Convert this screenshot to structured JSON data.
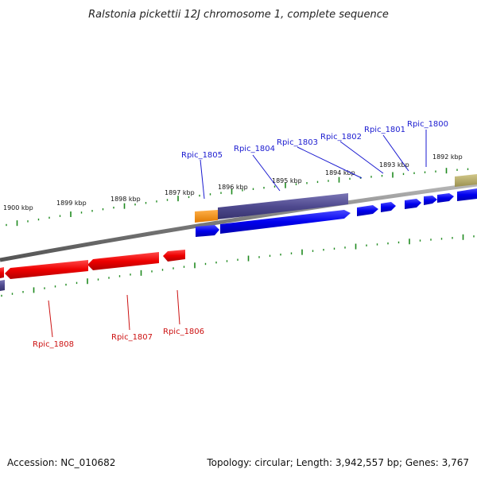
{
  "title": "Ralstonia pickettii 12J chromosome 1, complete sequence",
  "footer": {
    "accession": "Accession: NC_010682",
    "topology": "Topology: circular; Length: 3,942,557 bp; Genes: 3,767"
  },
  "colors": {
    "forward_gene": "#0000ee",
    "reverse_gene": "#ee0000",
    "forward_label": "#1a1ad0",
    "reverse_label": "#cc1111",
    "operon": "#4f4a8f",
    "misc_orange": "#f08a00",
    "misc_khaki": "#b4aa68",
    "backbone": "#808080",
    "tick": "#1f8a1f"
  },
  "outer_kbp_labels": [
    "1892 kbp",
    "1893 kbp",
    "1894 kbp",
    "1895 kbp",
    "1896 kbp",
    "1897 kbp",
    "1898 kbp",
    "1899 kbp",
    "1900 kbp"
  ],
  "forward_gene_labels": [
    "Rpic_1800",
    "Rpic_1801",
    "Rpic_1802",
    "Rpic_1803",
    "Rpic_1804",
    "Rpic_1805"
  ],
  "reverse_gene_labels": [
    "Rpic_1806",
    "Rpic_1807",
    "Rpic_1808"
  ]
}
